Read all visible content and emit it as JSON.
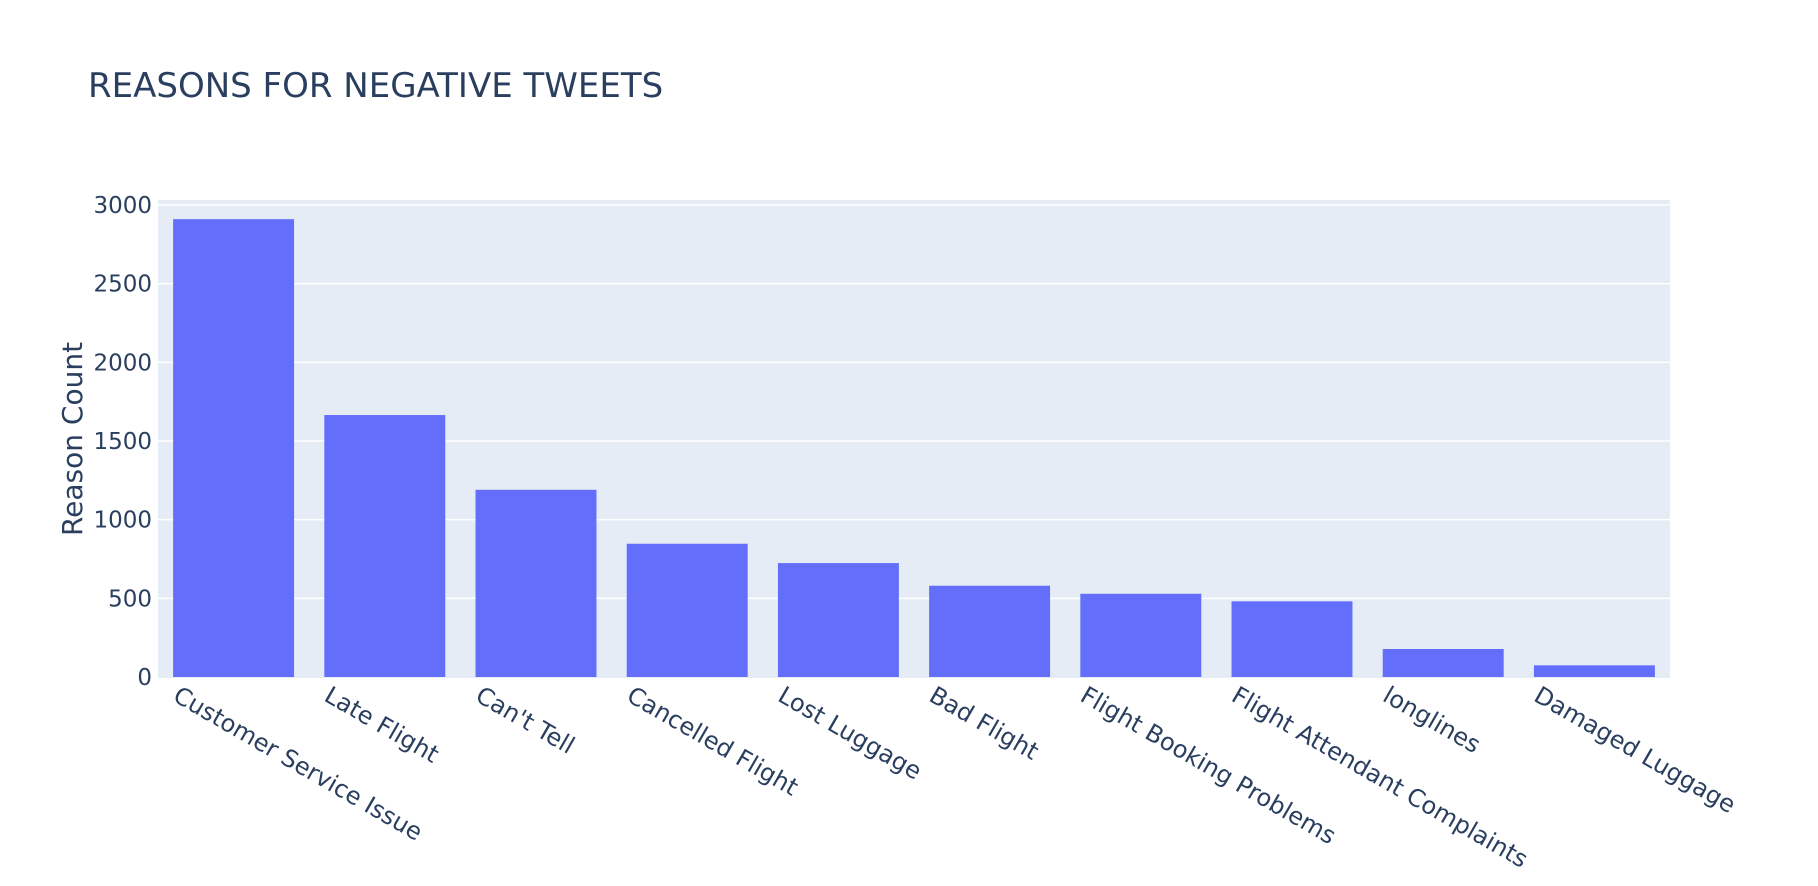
{
  "chart_data": {
    "type": "bar",
    "title": "REASONS FOR NEGATIVE TWEETS",
    "xlabel": "",
    "ylabel": "Reason Count",
    "categories": [
      "Customer Service Issue",
      "Late Flight",
      "Can't Tell",
      "Cancelled Flight",
      "Lost Luggage",
      "Bad Flight",
      "Flight Booking Problems",
      "Flight Attendant Complaints",
      "longlines",
      "Damaged Luggage"
    ],
    "values": [
      2910,
      1665,
      1190,
      847,
      724,
      580,
      529,
      481,
      178,
      74
    ],
    "ylim": [
      0,
      3000
    ],
    "yticks": [
      0,
      500,
      1000,
      1500,
      2000,
      2500,
      3000
    ],
    "grid": true,
    "colors": {
      "bar": "#636efa",
      "plot_background": "#e5ecf6",
      "text": "#2a3f5f"
    }
  }
}
